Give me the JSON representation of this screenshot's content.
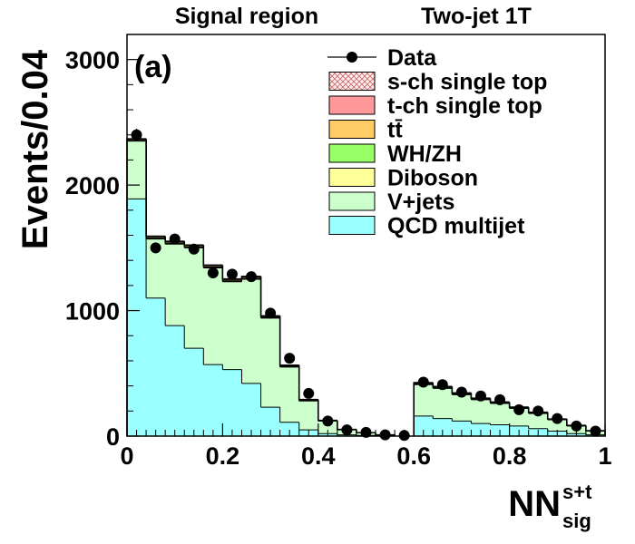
{
  "chart_data": {
    "type": "bar",
    "panel_label": "(a)",
    "headers": [
      "Signal region",
      "Two-jet 1T"
    ],
    "ylabel": "Events/0.04",
    "xlabel": {
      "main": "NN",
      "superscript": "s+t",
      "subscript": "sig"
    },
    "xlim": [
      0,
      1
    ],
    "ylim": [
      0,
      3200
    ],
    "x_ticks": [
      "0",
      "0.2",
      "0.4",
      "0.6",
      "0.8",
      "1"
    ],
    "x_tick_values": [
      0,
      0.2,
      0.4,
      0.6,
      0.8,
      1.0
    ],
    "y_ticks": [
      "0",
      "1000",
      "2000",
      "3000"
    ],
    "y_tick_values": [
      0,
      1000,
      2000,
      3000
    ],
    "bin_edges": [
      0,
      0.04,
      0.08,
      0.12,
      0.16,
      0.2,
      0.24,
      0.28,
      0.32,
      0.36,
      0.4,
      0.44,
      0.48,
      0.52,
      0.56,
      0.6,
      0.64,
      0.68,
      0.72,
      0.76,
      0.8,
      0.84,
      0.88,
      0.92,
      0.96,
      1.0
    ],
    "stack_series": [
      {
        "name": "QCD multijet",
        "color": "#99ffff",
        "values": [
          1890,
          1100,
          880,
          700,
          570,
          530,
          420,
          230,
          110,
          50,
          20,
          10,
          5,
          2,
          0,
          160,
          140,
          120,
          100,
          90,
          80,
          60,
          40,
          20,
          10
        ]
      },
      {
        "name": "V+jets",
        "color": "#ccffcc",
        "values": [
          460,
          470,
          650,
          800,
          770,
          700,
          830,
          710,
          440,
          230,
          100,
          40,
          20,
          8,
          0,
          250,
          240,
          210,
          190,
          170,
          140,
          120,
          90,
          60,
          30
        ]
      },
      {
        "name": "Diboson",
        "color": "#ffff99",
        "values": [
          5,
          6,
          6,
          6,
          6,
          6,
          6,
          5,
          4,
          3,
          2,
          1,
          1,
          0,
          0,
          5,
          4,
          4,
          3,
          3,
          3,
          3,
          2,
          2,
          1
        ]
      },
      {
        "name": "WH/ZH",
        "color": "#99ff66",
        "values": [
          1,
          1,
          1,
          1,
          1,
          1,
          1,
          1,
          1,
          1,
          0,
          0,
          0,
          0,
          0,
          1,
          1,
          1,
          1,
          1,
          1,
          1,
          1,
          0,
          0
        ]
      },
      {
        "name": "tt̄",
        "color": "#ffcc66",
        "values": [
          8,
          10,
          10,
          10,
          10,
          10,
          10,
          8,
          6,
          4,
          2,
          1,
          1,
          0,
          0,
          6,
          6,
          5,
          5,
          4,
          4,
          3,
          2,
          2,
          1
        ]
      },
      {
        "name": "t-ch single top",
        "color": "#ff9999",
        "values": [
          3,
          4,
          4,
          4,
          4,
          4,
          4,
          3,
          3,
          2,
          1,
          1,
          0,
          0,
          0,
          3,
          3,
          3,
          2,
          2,
          2,
          2,
          1,
          1,
          1
        ]
      },
      {
        "name": "s-ch single top",
        "color": "#ffeeee",
        "values": [
          1,
          1,
          1,
          1,
          1,
          1,
          1,
          1,
          1,
          1,
          0,
          0,
          0,
          0,
          0,
          1,
          1,
          1,
          1,
          1,
          1,
          1,
          0,
          0,
          0
        ]
      }
    ],
    "data_series": {
      "name": "Data",
      "values": [
        2400,
        1500,
        1570,
        1490,
        1300,
        1290,
        1270,
        980,
        620,
        340,
        120,
        50,
        30,
        10,
        5,
        430,
        410,
        350,
        320,
        290,
        210,
        200,
        140,
        80,
        40
      ]
    },
    "legend": {
      "placement": "top-right",
      "entries": [
        {
          "label": "Data",
          "marker": "point"
        },
        {
          "label": "s-ch single top",
          "marker": "box",
          "color": "#ffeeee",
          "hatched": true
        },
        {
          "label": "t-ch single top",
          "marker": "box",
          "color": "#ff9999"
        },
        {
          "label": "tt̄",
          "marker": "box",
          "color": "#ffcc66"
        },
        {
          "label": "WH/ZH",
          "marker": "box",
          "color": "#99ff66"
        },
        {
          "label": "Diboson",
          "marker": "box",
          "color": "#ffff99"
        },
        {
          "label": "V+jets",
          "marker": "box",
          "color": "#ccffcc"
        },
        {
          "label": "QCD multijet",
          "marker": "box",
          "color": "#99ffff"
        }
      ]
    }
  }
}
